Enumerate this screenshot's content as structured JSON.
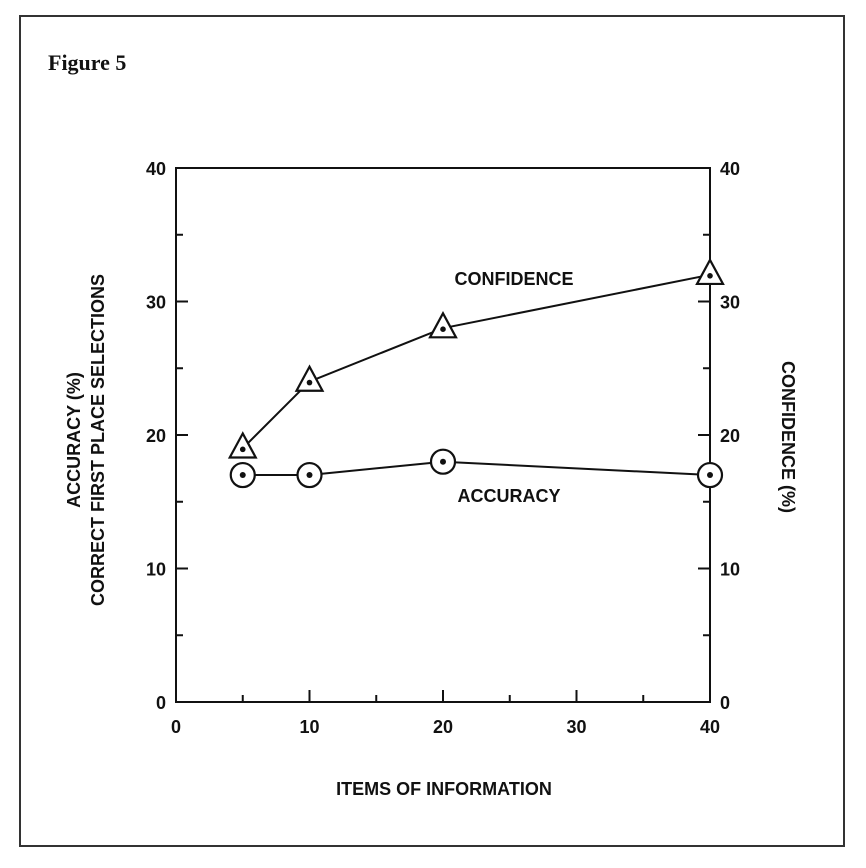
{
  "figure_title": "Figure 5",
  "chart_data": {
    "type": "line",
    "x_title": "ITEMS OF INFORMATION",
    "y_left_title_line1": "ACCURACY (%)",
    "y_left_title_line2": "CORRECT FIRST PLACE SELECTIONS",
    "y_right_title": "CONFIDENCE (%)",
    "xlim": [
      0,
      40
    ],
    "ylim": [
      0,
      40
    ],
    "x_ticks": [
      0,
      10,
      20,
      30,
      40
    ],
    "x_tick_labels": [
      "0",
      "10",
      "20",
      "30",
      "40"
    ],
    "y_ticks": [
      0,
      10,
      20,
      30,
      40
    ],
    "y_tick_labels": [
      "0",
      "10",
      "20",
      "30",
      "40"
    ],
    "x_minor_ticks": [
      5,
      15,
      25,
      35
    ],
    "y_minor_ticks": [
      5,
      15,
      25,
      35
    ],
    "x": [
      5,
      10,
      20,
      40
    ],
    "series": [
      {
        "name": "CONFIDENCE",
        "marker": "triangle-dot",
        "values": [
          19,
          24,
          28,
          32
        ]
      },
      {
        "name": "ACCURACY",
        "marker": "circle-dot",
        "values": [
          17,
          17,
          18,
          17
        ]
      }
    ],
    "grid": false
  }
}
